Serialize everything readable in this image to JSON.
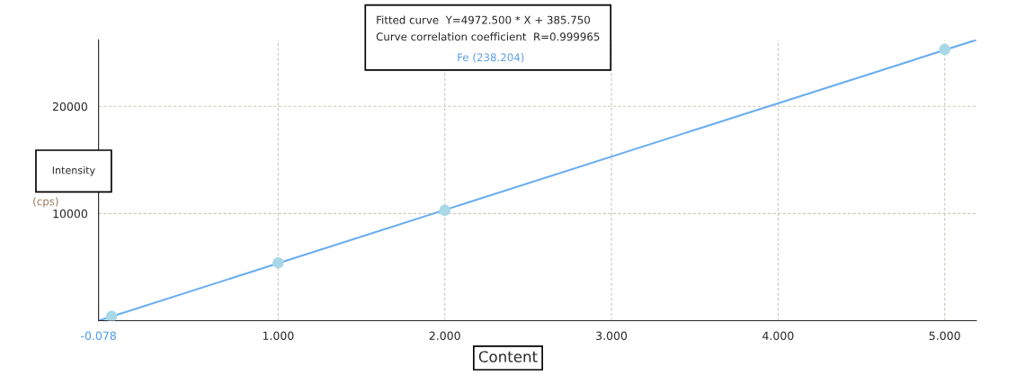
{
  "chart_data": {
    "type": "scatter",
    "subtitle": "Fe (238.204)",
    "xlabel": "Content",
    "ylabel": "Intensity",
    "annotations": [
      "Fitted curve  Y=4972.500 * X + 385.750",
      "Curve correlation coefficient  R=0.999965",
      "(cps)"
    ],
    "series": [
      {
        "type": "line",
        "color": "#6aaef0",
        "x": [
          -0.078,
          5.19
        ],
        "values": [
          0,
          26200
        ],
        "marker": "none",
        "line_style": "solid"
      },
      {
        "color": "#a8d8e8",
        "x": [
          0,
          1,
          2,
          5
        ],
        "values": [
          400,
          5400,
          10300,
          25300
        ],
        "marker": "circle"
      }
    ],
    "xlim": [
      -0.078,
      5.19
    ],
    "ylim": [
      0,
      26200
    ],
    "xticks": [
      {
        "value": -0.078,
        "label": "-0.078"
      },
      {
        "value": 1,
        "label": "1.000"
      },
      {
        "value": 2,
        "label": "2.000"
      },
      {
        "value": 3,
        "label": "3.000"
      },
      {
        "value": 4,
        "label": "4.000"
      },
      {
        "value": 5,
        "label": "5.000"
      }
    ],
    "yticks": [
      10000,
      20000
    ],
    "grid": true,
    "legend": false
  }
}
